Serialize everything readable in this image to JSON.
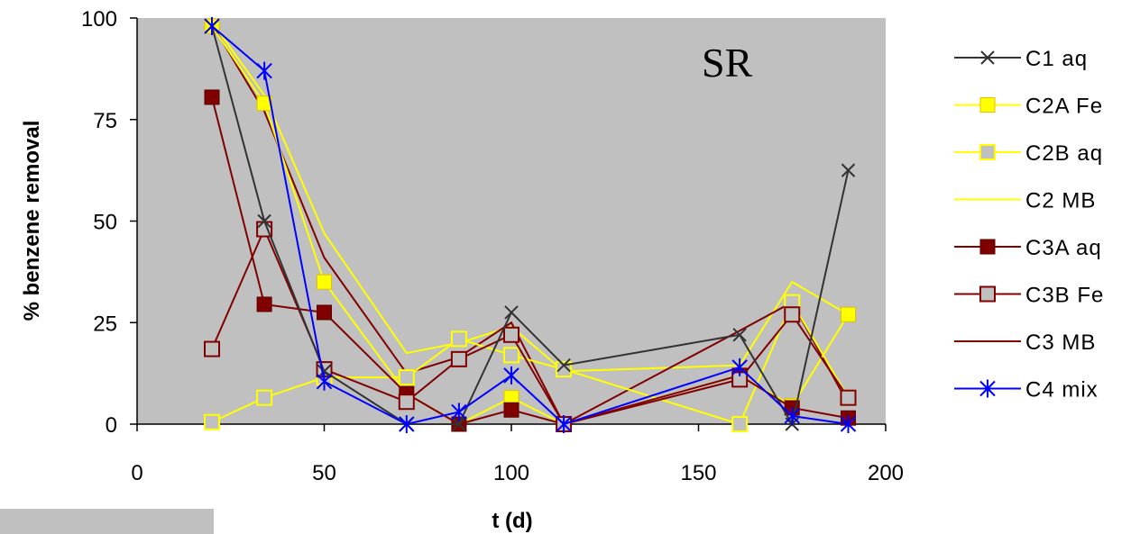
{
  "chart_data": {
    "type": "line",
    "annotation": "SR",
    "xlabel": "t (d)",
    "ylabel": "% benzene removal",
    "xlim": [
      0,
      200
    ],
    "ylim": [
      0,
      100
    ],
    "x_ticks": [
      "0",
      "50",
      "100",
      "150",
      "200"
    ],
    "y_ticks": [
      "0",
      "25",
      "50",
      "75",
      "100"
    ],
    "plot_background": "#c0c0c0",
    "grid": false,
    "legend_position": "right",
    "series": [
      {
        "name": "C1 aq",
        "color": "#333333",
        "marker": "x",
        "points": [
          [
            20,
            98
          ],
          [
            34,
            50
          ],
          [
            50,
            13
          ],
          [
            72,
            0
          ],
          [
            86,
            0
          ],
          [
            100,
            27.5
          ],
          [
            114,
            14.5
          ],
          [
            161,
            22
          ],
          [
            175,
            0
          ],
          [
            190,
            62.5
          ]
        ]
      },
      {
        "name": "C2A Fe",
        "color": "#ffff00",
        "marker": "square-filled",
        "points": [
          [
            20,
            98
          ],
          [
            34,
            79
          ],
          [
            50,
            35
          ],
          [
            72,
            7.5
          ],
          [
            86,
            0
          ],
          [
            100,
            6.5
          ],
          [
            114,
            0
          ],
          [
            161,
            12
          ],
          [
            175,
            4.5
          ],
          [
            190,
            27
          ]
        ]
      },
      {
        "name": "C2B aq",
        "color": "#ffff00",
        "marker": "square-open",
        "points": [
          [
            20,
            0.5
          ],
          [
            34,
            6.5
          ],
          [
            50,
            11.5
          ],
          [
            72,
            11.5
          ],
          [
            86,
            21
          ],
          [
            100,
            17
          ],
          [
            114,
            13.5
          ],
          [
            161,
            0
          ],
          [
            175,
            30
          ],
          [
            190,
            6.5
          ]
        ]
      },
      {
        "name": "C2 MB",
        "color": "#ffff00",
        "marker": "none",
        "points": [
          [
            20,
            99
          ],
          [
            34,
            81
          ],
          [
            50,
            47
          ],
          [
            72,
            17.5
          ],
          [
            86,
            20
          ],
          [
            100,
            24
          ],
          [
            114,
            13
          ],
          [
            161,
            14.5
          ],
          [
            175,
            35
          ],
          [
            190,
            27
          ]
        ]
      },
      {
        "name": "C3A aq",
        "color": "#800000",
        "marker": "square-filled",
        "points": [
          [
            20,
            80.5
          ],
          [
            34,
            29.5
          ],
          [
            50,
            27.5
          ],
          [
            72,
            7.5
          ],
          [
            86,
            0
          ],
          [
            100,
            3.5
          ],
          [
            114,
            0
          ],
          [
            161,
            12
          ],
          [
            175,
            4
          ],
          [
            190,
            1.5
          ]
        ]
      },
      {
        "name": "C3B Fe",
        "color": "#800000",
        "marker": "square-open",
        "points": [
          [
            20,
            18.5
          ],
          [
            34,
            48
          ],
          [
            50,
            13.5
          ],
          [
            72,
            5.5
          ],
          [
            86,
            16
          ],
          [
            100,
            22
          ],
          [
            114,
            0
          ],
          [
            161,
            11
          ],
          [
            175,
            27
          ],
          [
            190,
            6.5
          ]
        ]
      },
      {
        "name": "C3 MB",
        "color": "#800000",
        "marker": "none",
        "points": [
          [
            20,
            98.5
          ],
          [
            34,
            77
          ],
          [
            50,
            41
          ],
          [
            72,
            12.5
          ],
          [
            86,
            16.5
          ],
          [
            100,
            25
          ],
          [
            114,
            0
          ],
          [
            161,
            23
          ],
          [
            175,
            30
          ],
          [
            190,
            5
          ]
        ]
      },
      {
        "name": "C4 mix",
        "color": "#0000ff",
        "marker": "asterisk",
        "points": [
          [
            20,
            98
          ],
          [
            34,
            87
          ],
          [
            50,
            10.5
          ],
          [
            72,
            0
          ],
          [
            86,
            3
          ],
          [
            100,
            12
          ],
          [
            114,
            0
          ],
          [
            161,
            14
          ],
          [
            175,
            2
          ],
          [
            190,
            0
          ]
        ]
      }
    ]
  }
}
